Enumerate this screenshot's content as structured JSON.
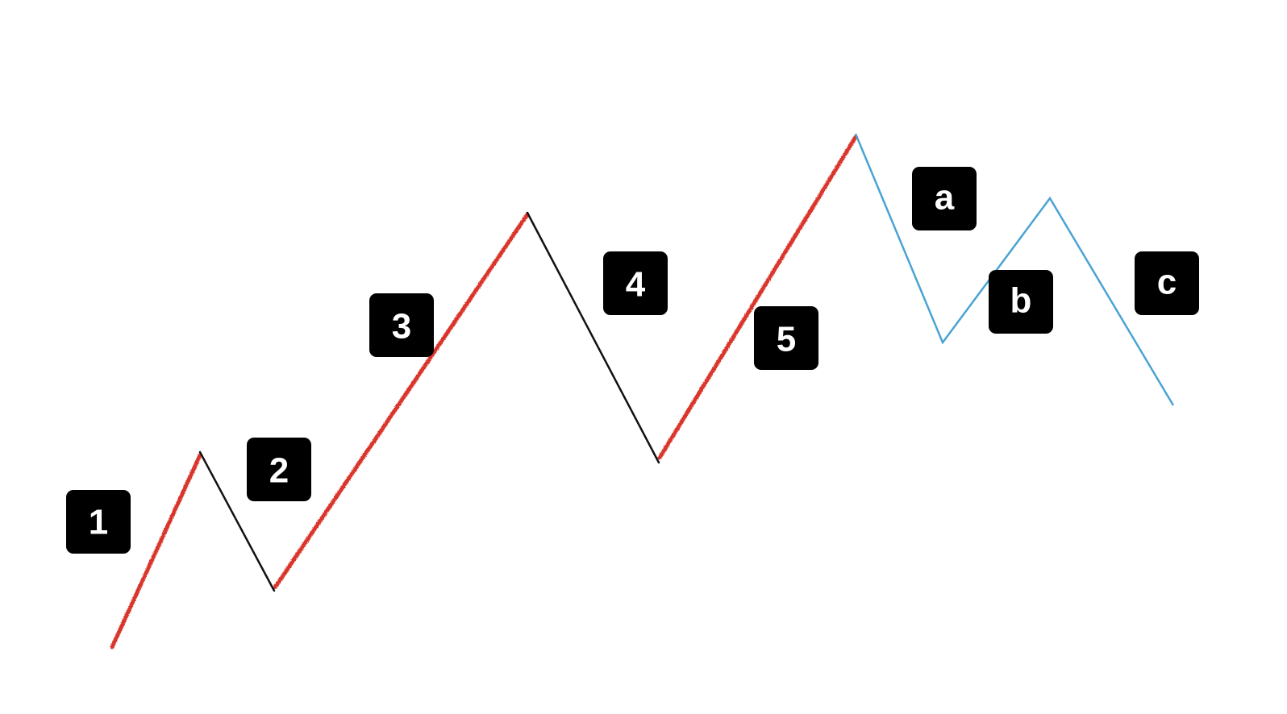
{
  "diagram": {
    "colors": {
      "impulse": "#d9362b",
      "corrective": "#111111",
      "abc": "#4aa3d4",
      "label_box": "#000000",
      "label_text": "#ffffff"
    },
    "labels": {
      "w1": "1",
      "w2": "2",
      "w3": "3",
      "w4": "4",
      "w5": "5",
      "wa": "a",
      "wb": "b",
      "wc": "c"
    }
  }
}
